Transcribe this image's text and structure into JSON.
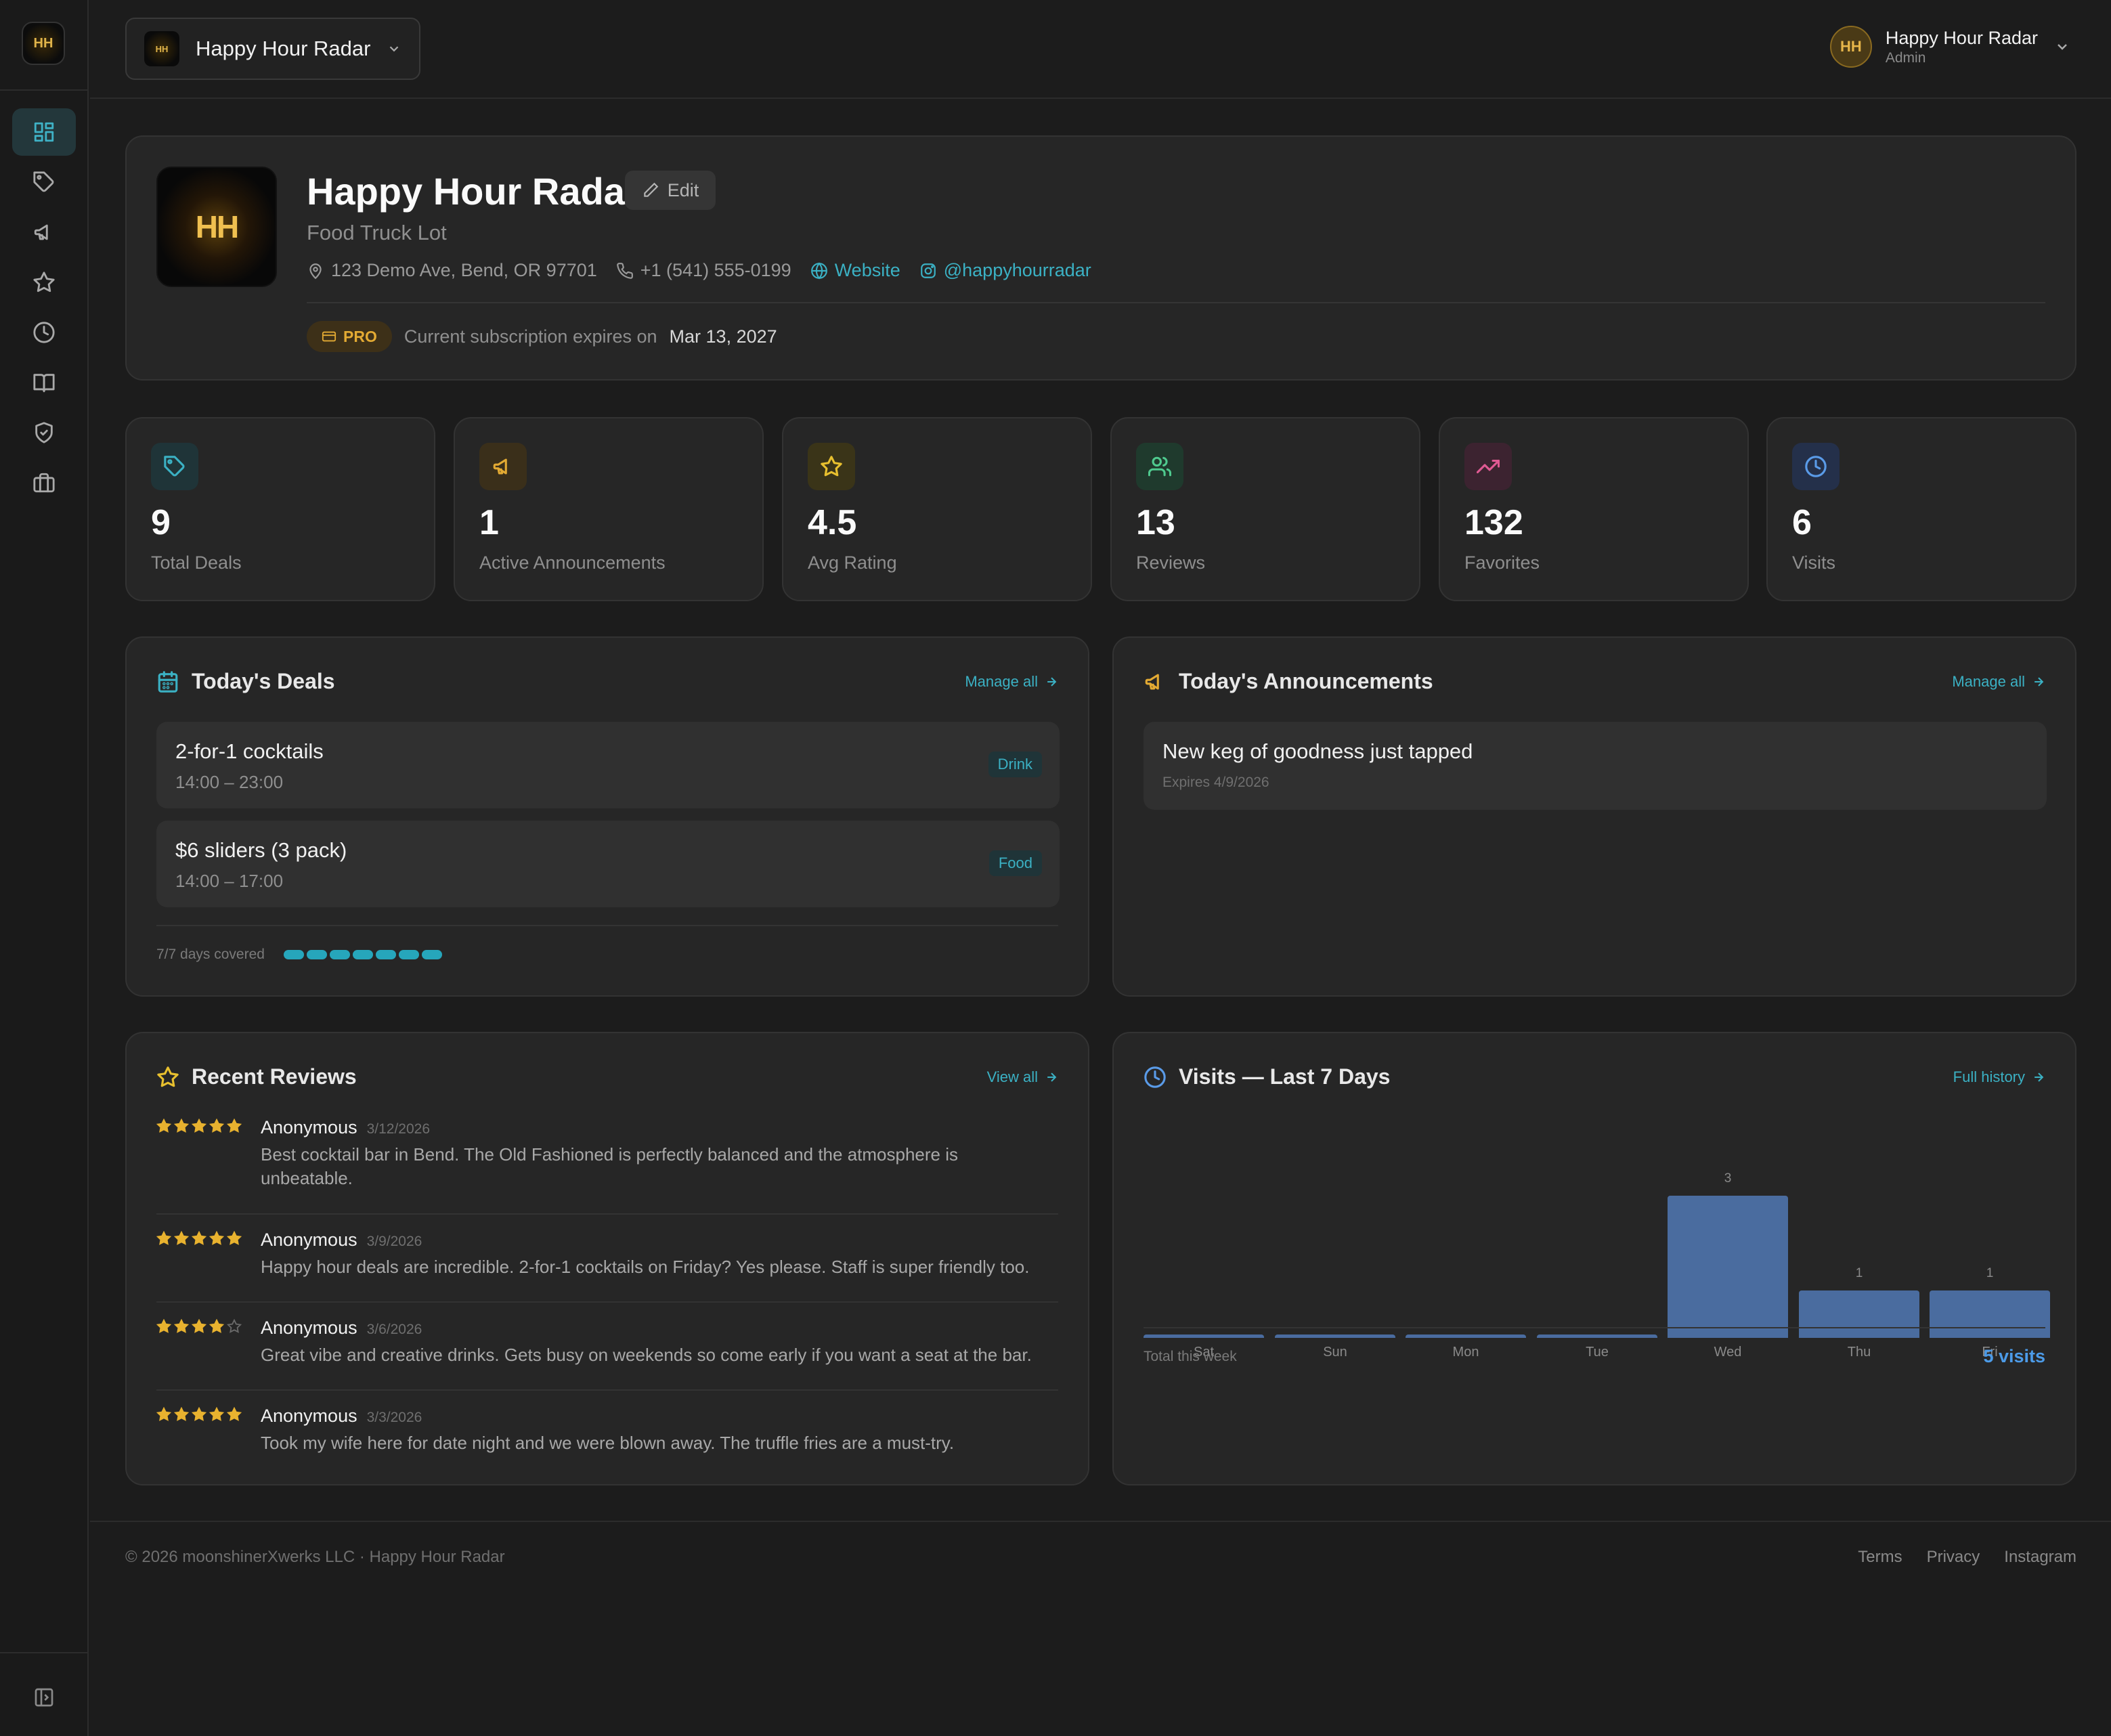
{
  "app": {
    "logo_text": "HH"
  },
  "sidebar": {
    "items": [
      {
        "icon": "dashboard-icon",
        "active": true
      },
      {
        "icon": "tag-icon"
      },
      {
        "icon": "megaphone-icon"
      },
      {
        "icon": "star-icon"
      },
      {
        "icon": "clock-icon"
      },
      {
        "icon": "book-icon"
      },
      {
        "icon": "shield-check-icon"
      },
      {
        "icon": "briefcase-icon"
      }
    ],
    "collapse_icon": "sidebar-collapse-icon"
  },
  "topbar": {
    "venue_name": "Happy Hour Radar",
    "venue_logo_text": "HH",
    "user": {
      "initials": "HH",
      "name": "Happy Hour Radar",
      "role": "Admin"
    }
  },
  "profile": {
    "logo_text": "HH",
    "name": "Happy Hour Radar",
    "edit_label": "Edit",
    "category": "Food Truck Lot",
    "address": "123 Demo Ave, Bend, OR 97701",
    "phone": "+1 (541) 555-0199",
    "website_label": "Website",
    "instagram": "@happyhourradar",
    "plan_badge": "PRO",
    "subscription_label": "Current subscription expires on",
    "subscription_date": "Mar 13, 2027"
  },
  "stats": [
    {
      "value": "9",
      "label": "Total Deals",
      "icon": "tag-icon",
      "color": "#3bb1c4",
      "bg": "#1f3438"
    },
    {
      "value": "1",
      "label": "Active Announcements",
      "icon": "megaphone-icon",
      "color": "#e3aa33",
      "bg": "#3a2f1a"
    },
    {
      "value": "4.5",
      "label": "Avg Rating",
      "icon": "star-icon",
      "color": "#e8c02f",
      "bg": "#3a3418"
    },
    {
      "value": "13",
      "label": "Reviews",
      "icon": "users-icon",
      "color": "#4fc98e",
      "bg": "#1f3a2d"
    },
    {
      "value": "132",
      "label": "Favorites",
      "icon": "trending-up-icon",
      "color": "#e05a93",
      "bg": "#3c2330"
    },
    {
      "value": "6",
      "label": "Visits",
      "icon": "clock-icon",
      "color": "#5a9be8",
      "bg": "#24304a"
    }
  ],
  "deals": {
    "title": "Today's Deals",
    "link": "Manage all",
    "items": [
      {
        "name": "2-for-1 cocktails",
        "time": "14:00 – 23:00",
        "tag": "Drink"
      },
      {
        "name": "$6 sliders (3 pack)",
        "time": "14:00 – 17:00",
        "tag": "Food"
      }
    ],
    "coverage_label": "7/7 days covered",
    "days_covered": 7
  },
  "announcements": {
    "title": "Today's Announcements",
    "link": "Manage all",
    "items": [
      {
        "title": "New keg of goodness just tapped",
        "expires": "Expires 4/9/2026"
      }
    ]
  },
  "reviews": {
    "title": "Recent Reviews",
    "link": "View all",
    "items": [
      {
        "rating": 5,
        "author": "Anonymous",
        "date": "3/12/2026",
        "text": "Best cocktail bar in Bend. The Old Fashioned is perfectly balanced and the atmosphere is unbeatable."
      },
      {
        "rating": 5,
        "author": "Anonymous",
        "date": "3/9/2026",
        "text": "Happy hour deals are incredible. 2-for-1 cocktails on Friday? Yes please. Staff is super friendly too."
      },
      {
        "rating": 4,
        "author": "Anonymous",
        "date": "3/6/2026",
        "text": "Great vibe and creative drinks. Gets busy on weekends so come early if you want a seat at the bar."
      },
      {
        "rating": 5,
        "author": "Anonymous",
        "date": "3/3/2026",
        "text": "Took my wife here for date night and we were blown away. The truffle fries are a must-try."
      }
    ]
  },
  "visits": {
    "title": "Visits — Last 7 Days",
    "link": "Full history",
    "total_label": "Total this week",
    "total_value": "5 visits"
  },
  "chart_data": {
    "type": "bar",
    "title": "Visits — Last 7 Days",
    "categories": [
      "Sat",
      "Sun",
      "Mon",
      "Tue",
      "Wed",
      "Thu",
      "Fri"
    ],
    "values": [
      0,
      0,
      0,
      0,
      3,
      1,
      1
    ],
    "xlabel": "",
    "ylabel": "",
    "ylim": [
      0,
      3
    ],
    "grid": false,
    "color": "#4a6c9f"
  },
  "footer": {
    "copyright": "© 2026 moonshinerXwerks LLC · Happy Hour Radar",
    "links": [
      "Terms",
      "Privacy",
      "Instagram"
    ]
  }
}
